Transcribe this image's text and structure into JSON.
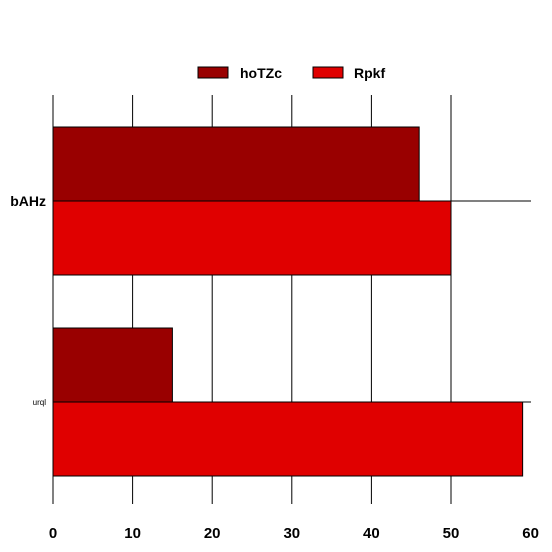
{
  "chart_data": {
    "type": "bar",
    "orientation": "horizontal",
    "title": "",
    "xlabel": "",
    "ylabel": "",
    "categories": [
      "bAHz",
      "urql"
    ],
    "category_label_styles": [
      {
        "bold": true,
        "size": "large"
      },
      {
        "bold": false,
        "size": "small"
      }
    ],
    "series": [
      {
        "name": "hoTZc",
        "color": "#990000",
        "values": [
          46,
          15
        ]
      },
      {
        "name": "Rpkf",
        "color": "#e00000",
        "values": [
          50,
          59
        ]
      }
    ],
    "xlim": [
      0,
      60
    ],
    "xticks": [
      0,
      10,
      20,
      30,
      40,
      50,
      60
    ],
    "grid": true,
    "legend_position": "top-center"
  }
}
